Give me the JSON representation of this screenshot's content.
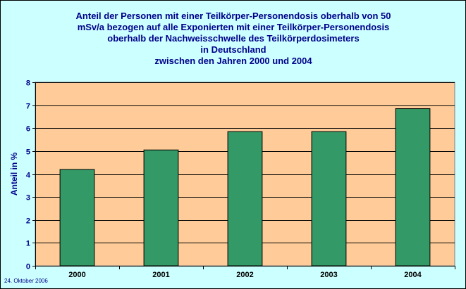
{
  "chart_data": {
    "type": "bar",
    "title_lines": [
      "Anteil der Personen mit einer Teilkörper-Personendosis oberhalb von 50",
      "mSv/a bezogen auf alle Exponierten mit einer Teilkörper-Personendosis",
      "oberhalb der Nachweisschwelle des Teilkörperdosimeters",
      "in Deutschland",
      "zwischen den Jahren 2000 und 2004"
    ],
    "xlabel": "",
    "ylabel": "Anteil in %",
    "categories": [
      "2000",
      "2001",
      "2002",
      "2003",
      "2004"
    ],
    "values": [
      4.2,
      5.05,
      5.85,
      5.85,
      6.85
    ],
    "ylim": [
      0,
      8
    ],
    "yticks": [
      "0",
      "1",
      "2",
      "3",
      "4",
      "5",
      "6",
      "7",
      "8"
    ],
    "grid": true,
    "colors": {
      "background": "#ccffff",
      "plot_area": "#ffcc99",
      "bar": "#339966",
      "text": "#00008b"
    }
  },
  "footer": {
    "date": "24. Oktober 2006"
  }
}
